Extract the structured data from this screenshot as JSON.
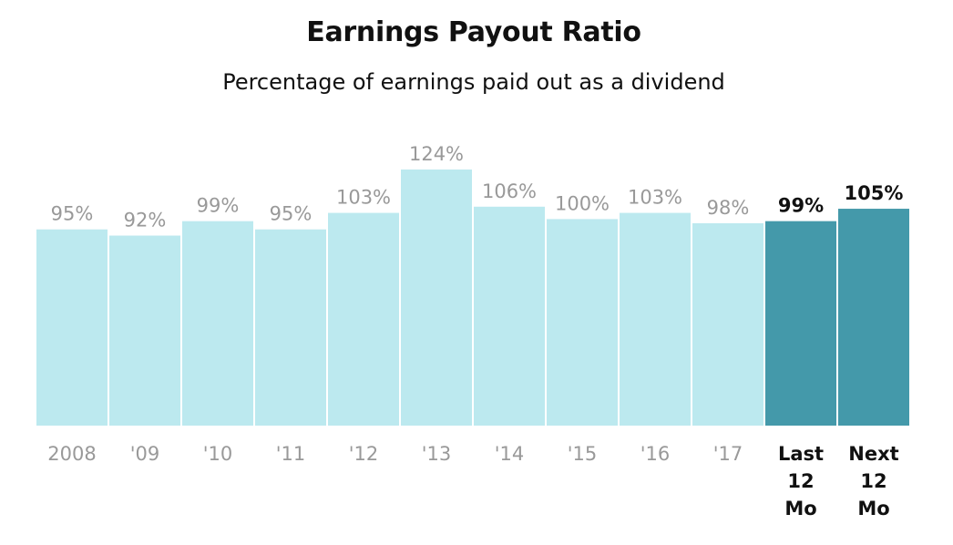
{
  "title": "Earnings Payout Ratio",
  "subtitle": "Percentage of earnings paid out as a dividend",
  "colors": {
    "historical_bar": "#bce9ef",
    "forward_bar": "#4499aa",
    "historical_text": "#999999",
    "forward_text": "#111111"
  },
  "chart_data": {
    "type": "bar",
    "categories": [
      "2008",
      "'09",
      "'10",
      "'11",
      "'12",
      "'13",
      "'14",
      "'15",
      "'16",
      "'17",
      "Last 12 Mo",
      "Next 12 Mo"
    ],
    "category_lines": [
      [
        "2008"
      ],
      [
        "'09"
      ],
      [
        "'10"
      ],
      [
        "'11"
      ],
      [
        "'12"
      ],
      [
        "'13"
      ],
      [
        "'14"
      ],
      [
        "'15"
      ],
      [
        "'16"
      ],
      [
        "'17"
      ],
      [
        "Last",
        "12",
        "Mo"
      ],
      [
        "Next",
        "12",
        "Mo"
      ]
    ],
    "values": [
      95,
      92,
      99,
      95,
      103,
      124,
      106,
      100,
      103,
      98,
      99,
      105
    ],
    "value_labels": [
      "95%",
      "92%",
      "99%",
      "95%",
      "103%",
      "124%",
      "106%",
      "100%",
      "103%",
      "98%",
      "99%",
      "105%"
    ],
    "highlighted": [
      false,
      false,
      false,
      false,
      false,
      false,
      false,
      false,
      false,
      false,
      true,
      true
    ],
    "ylim": [
      0,
      124
    ],
    "grid": false,
    "legend": "none"
  }
}
